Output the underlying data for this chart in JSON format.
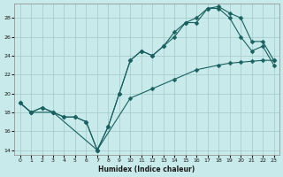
{
  "xlabel": "Humidex (Indice chaleur)",
  "background_color": "#c8eaea",
  "grid_color": "#a0c8c8",
  "line_color": "#1a6060",
  "xlim": [
    -0.5,
    23.5
  ],
  "ylim": [
    13.5,
    29.5
  ],
  "xticks": [
    0,
    1,
    2,
    3,
    4,
    5,
    6,
    7,
    8,
    9,
    10,
    11,
    12,
    13,
    14,
    15,
    16,
    17,
    18,
    19,
    20,
    21,
    22,
    23
  ],
  "yticks": [
    14,
    16,
    18,
    20,
    22,
    24,
    26,
    28
  ],
  "line1_x": [
    0,
    1,
    2,
    3,
    4,
    5,
    6,
    7,
    8,
    9,
    10,
    11,
    12,
    13,
    14,
    15,
    16,
    17,
    18,
    19,
    20,
    21,
    22,
    23
  ],
  "line1_y": [
    19,
    18,
    18.5,
    18,
    17.5,
    17.5,
    17,
    14,
    16.5,
    20,
    23.5,
    24.5,
    24,
    25,
    26,
    27.5,
    27.5,
    29,
    29,
    28,
    26,
    24.5,
    25,
    23
  ],
  "line2_x": [
    0,
    1,
    2,
    3,
    4,
    5,
    6,
    7,
    8,
    9,
    10,
    11,
    12,
    13,
    14,
    15,
    16,
    17,
    18,
    19,
    20,
    21,
    22,
    23
  ],
  "line2_y": [
    19,
    18,
    18.5,
    18,
    17.5,
    17.5,
    17,
    14,
    16.5,
    20,
    23.5,
    24.5,
    24,
    25,
    26.5,
    27.5,
    28,
    29,
    29.2,
    28.5,
    28,
    25.5,
    25.5,
    23.5
  ],
  "line3_x": [
    0,
    1,
    3,
    7,
    10,
    12,
    14,
    16,
    18,
    19,
    20,
    21,
    22,
    23
  ],
  "line3_y": [
    19,
    18,
    18,
    14,
    19.5,
    20.5,
    21.5,
    22.5,
    23.0,
    23.2,
    23.3,
    23.4,
    23.5,
    23.5
  ],
  "markersize": 2.5
}
